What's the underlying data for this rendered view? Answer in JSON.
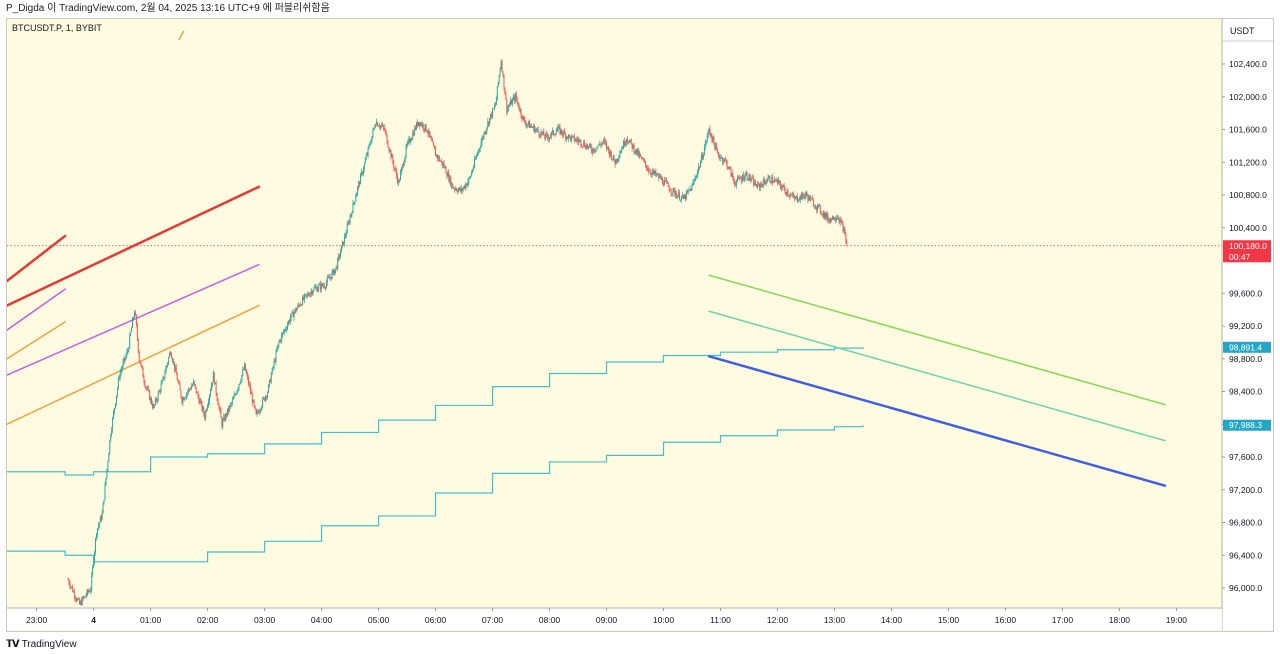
{
  "header": {
    "text": "P_Digda 이 TradingView.com, 2월 04, 2025 13:16 UTC+9 에 퍼블리쉬함음"
  },
  "symbol": {
    "text": "BTCUSDT.P, 1, BYBIT"
  },
  "footer": {
    "logo_text": "TradingView",
    "icon": "tradingview-logo-icon"
  },
  "colors": {
    "background": "#fffbe1",
    "candle_up": "#26a69a",
    "candle_down": "#ef5350",
    "price_tag": "#f23645",
    "cyan_tag": "#22a7c6"
  },
  "chart_data": {
    "type": "candlestick",
    "currency": "USDT",
    "y_range": [
      95800,
      102800
    ],
    "y_ticks": [
      "102,400.0",
      "102,000.0",
      "101,600.0",
      "101,200.0",
      "100,800.0",
      "100,400.0",
      "99,600.0",
      "99,200.0",
      "98,800.0",
      "98,400.0",
      "98,000.0",
      "97,600.0",
      "97,200.0",
      "96,800.0",
      "96,400.0",
      "96,000.0"
    ],
    "y_tick_values": [
      102400,
      102000,
      101600,
      101200,
      100800,
      100400,
      99600,
      99200,
      98800,
      98400,
      98000,
      97600,
      97200,
      96800,
      96400,
      96000
    ],
    "x_ticks": [
      "23:00",
      "4",
      "01:00",
      "02:00",
      "03:00",
      "04:00",
      "05:00",
      "06:00",
      "07:00",
      "08:00",
      "09:00",
      "10:00",
      "11:00",
      "12:00",
      "13:00",
      "14:00",
      "15:00",
      "16:00",
      "17:00",
      "18:00",
      "19:00"
    ],
    "x_tick_hours": [
      -1,
      0,
      1,
      2,
      3,
      4,
      5,
      6,
      7,
      8,
      9,
      10,
      11,
      12,
      13,
      14,
      15,
      16,
      17,
      18,
      19
    ],
    "x_range_hours": [
      -1.52,
      19.8
    ],
    "price_path": [
      [
        -0.45,
        96100
      ],
      [
        -0.25,
        95800
      ],
      [
        -0.05,
        96000
      ],
      [
        0.05,
        96700
      ],
      [
        0.15,
        96900
      ],
      [
        0.3,
        97900
      ],
      [
        0.45,
        98600
      ],
      [
        0.6,
        98900
      ],
      [
        0.72,
        99400
      ],
      [
        0.8,
        98800
      ],
      [
        0.9,
        98500
      ],
      [
        1.05,
        98200
      ],
      [
        1.2,
        98500
      ],
      [
        1.35,
        98900
      ],
      [
        1.55,
        98300
      ],
      [
        1.75,
        98500
      ],
      [
        1.95,
        98100
      ],
      [
        2.1,
        98600
      ],
      [
        2.25,
        98000
      ],
      [
        2.45,
        98300
      ],
      [
        2.65,
        98700
      ],
      [
        2.85,
        98100
      ],
      [
        3.05,
        98400
      ],
      [
        3.25,
        99000
      ],
      [
        3.45,
        99300
      ],
      [
        3.65,
        99500
      ],
      [
        3.85,
        99650
      ],
      [
        4.05,
        99700
      ],
      [
        4.25,
        99900
      ],
      [
        4.45,
        100400
      ],
      [
        4.6,
        100800
      ],
      [
        4.8,
        101300
      ],
      [
        4.95,
        101700
      ],
      [
        5.1,
        101600
      ],
      [
        5.25,
        101200
      ],
      [
        5.35,
        100950
      ],
      [
        5.5,
        101400
      ],
      [
        5.7,
        101700
      ],
      [
        5.85,
        101600
      ],
      [
        6.0,
        101300
      ],
      [
        6.15,
        101150
      ],
      [
        6.3,
        100900
      ],
      [
        6.45,
        100850
      ],
      [
        6.6,
        101000
      ],
      [
        6.75,
        101350
      ],
      [
        6.9,
        101650
      ],
      [
        7.05,
        101900
      ],
      [
        7.15,
        102450
      ],
      [
        7.25,
        101850
      ],
      [
        7.4,
        102000
      ],
      [
        7.55,
        101700
      ],
      [
        7.75,
        101600
      ],
      [
        7.95,
        101500
      ],
      [
        8.15,
        101600
      ],
      [
        8.35,
        101500
      ],
      [
        8.55,
        101450
      ],
      [
        8.75,
        101350
      ],
      [
        8.95,
        101450
      ],
      [
        9.15,
        101200
      ],
      [
        9.35,
        101500
      ],
      [
        9.55,
        101300
      ],
      [
        9.75,
        101100
      ],
      [
        9.95,
        101000
      ],
      [
        10.15,
        100850
      ],
      [
        10.35,
        100750
      ],
      [
        10.5,
        100900
      ],
      [
        10.65,
        101200
      ],
      [
        10.8,
        101600
      ],
      [
        10.95,
        101300
      ],
      [
        11.1,
        101200
      ],
      [
        11.25,
        100950
      ],
      [
        11.45,
        101050
      ],
      [
        11.65,
        100900
      ],
      [
        11.85,
        101000
      ],
      [
        12.0,
        100950
      ],
      [
        12.15,
        100850
      ],
      [
        12.3,
        100750
      ],
      [
        12.5,
        100800
      ],
      [
        12.7,
        100650
      ],
      [
        12.9,
        100500
      ],
      [
        13.05,
        100550
      ],
      [
        13.15,
        100400
      ],
      [
        13.22,
        100180
      ]
    ],
    "last_price": {
      "value": 100180,
      "label": "100,180.0",
      "countdown": "00:47"
    },
    "step_lines": [
      {
        "name": "upper-step-line",
        "points": [
          [
            -1.52,
            97420
          ],
          [
            -1.0,
            97420
          ],
          [
            -0.5,
            97380
          ],
          [
            0.0,
            97420
          ],
          [
            1.0,
            97600
          ],
          [
            2.0,
            97640
          ],
          [
            3.0,
            97760
          ],
          [
            4.0,
            97900
          ],
          [
            5.0,
            98050
          ],
          [
            6.0,
            98230
          ],
          [
            7.0,
            98460
          ],
          [
            8.0,
            98620
          ],
          [
            9.0,
            98760
          ],
          [
            10.0,
            98840
          ],
          [
            11.0,
            98880
          ],
          [
            12.0,
            98910
          ],
          [
            13.0,
            98930
          ],
          [
            13.5,
            98940
          ]
        ],
        "tag_label": "98,891.4"
      },
      {
        "name": "lower-step-line",
        "points": [
          [
            -1.52,
            96450
          ],
          [
            -1.0,
            96450
          ],
          [
            -0.5,
            96400
          ],
          [
            0.0,
            96320
          ],
          [
            1.0,
            96320
          ],
          [
            2.0,
            96440
          ],
          [
            3.0,
            96570
          ],
          [
            4.0,
            96760
          ],
          [
            5.0,
            96880
          ],
          [
            6.0,
            97160
          ],
          [
            7.0,
            97400
          ],
          [
            8.0,
            97540
          ],
          [
            9.0,
            97620
          ],
          [
            10.0,
            97780
          ],
          [
            11.0,
            97860
          ],
          [
            12.0,
            97930
          ],
          [
            13.0,
            97970
          ],
          [
            13.5,
            97988
          ]
        ],
        "tag_label": "97,988.3"
      }
    ],
    "trend_lines": [
      {
        "name": "red-trend-line-short",
        "color": "#e53935",
        "width": 2.5,
        "from": [
          -1.52,
          99750
        ],
        "to": [
          -0.5,
          100300
        ]
      },
      {
        "name": "red-trend-line-long",
        "color": "#e53935",
        "width": 2.5,
        "from": [
          -1.52,
          99450
        ],
        "to": [
          2.9,
          100900
        ]
      },
      {
        "name": "purple-trend-line-short",
        "color": "#c65ee0",
        "width": 1.5,
        "from": [
          -1.52,
          99150
        ],
        "to": [
          -0.5,
          99650
        ]
      },
      {
        "name": "purple-trend-line-long",
        "color": "#c65ee0",
        "width": 1.5,
        "from": [
          -1.52,
          98600
        ],
        "to": [
          2.9,
          99950
        ]
      },
      {
        "name": "orange-trend-line-short",
        "color": "#f5a040",
        "width": 1.5,
        "from": [
          -1.52,
          98800
        ],
        "to": [
          -0.5,
          99250
        ]
      },
      {
        "name": "orange-trend-line-long",
        "color": "#f5a040",
        "width": 1.5,
        "from": [
          -1.52,
          98000
        ],
        "to": [
          2.9,
          99450
        ]
      },
      {
        "name": "orange-stub-line",
        "color": "#f5a040",
        "width": 1.5,
        "from": [
          1.5,
          102700
        ],
        "to": [
          1.58,
          102800
        ]
      },
      {
        "name": "green-trend-line",
        "color": "#7ddc4f",
        "width": 1.5,
        "from": [
          10.8,
          99820
        ],
        "to": [
          18.8,
          98240
        ]
      },
      {
        "name": "teal-trend-line",
        "color": "#69d6ae",
        "width": 1.5,
        "from": [
          10.8,
          99380
        ],
        "to": [
          18.8,
          97800
        ]
      },
      {
        "name": "blue-trend-line",
        "color": "#3f5fe4",
        "width": 2.5,
        "from": [
          10.8,
          98830
        ],
        "to": [
          18.8,
          97250
        ]
      }
    ]
  }
}
